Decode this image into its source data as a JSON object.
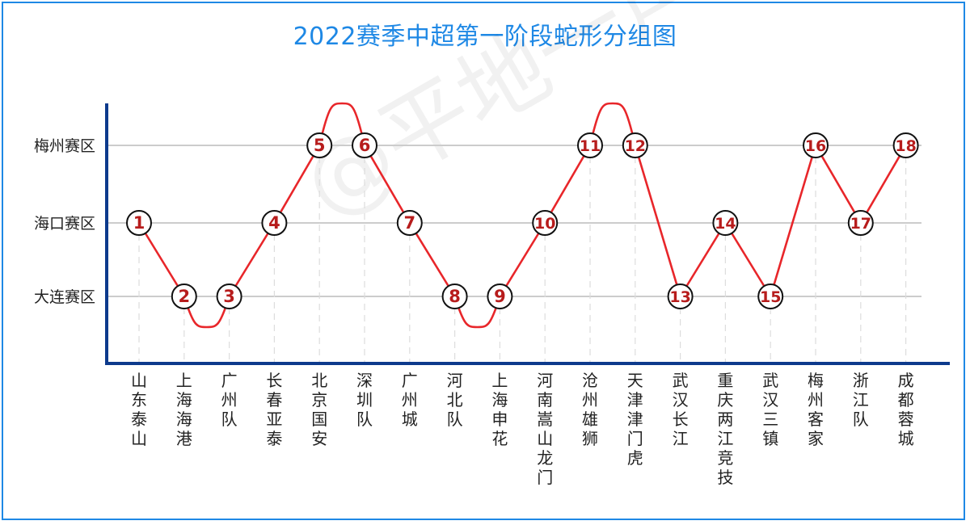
{
  "chart_data": {
    "type": "line",
    "title": "2022赛季中超第一阶段蛇形分组图",
    "y_categories": [
      "大连赛区",
      "海口赛区",
      "梅州赛区"
    ],
    "x": [
      "山东泰山",
      "上海海港",
      "广州队",
      "长春亚泰",
      "北京国安",
      "深圳队",
      "广州城",
      "河北队",
      "上海申花",
      "河南嵩山龙门",
      "沧州雄狮",
      "天津津门虎",
      "武汉长江",
      "重庆两江竞技",
      "武汉三镇",
      "梅州客家",
      "浙江队",
      "成都蓉城"
    ],
    "series": [
      {
        "points": [
          {
            "label": "1",
            "team": "山东泰山",
            "zone": "海口赛区"
          },
          {
            "label": "2",
            "team": "上海海港",
            "zone": "大连赛区"
          },
          {
            "label": "3",
            "team": "广州队",
            "zone": "大连赛区"
          },
          {
            "label": "4",
            "team": "长春亚泰",
            "zone": "海口赛区"
          },
          {
            "label": "5",
            "team": "北京国安",
            "zone": "梅州赛区"
          },
          {
            "label": "6",
            "team": "深圳队",
            "zone": "梅州赛区"
          },
          {
            "label": "7",
            "team": "广州城",
            "zone": "海口赛区"
          },
          {
            "label": "8",
            "team": "河北队",
            "zone": "大连赛区"
          },
          {
            "label": "9",
            "team": "上海申花",
            "zone": "大连赛区"
          },
          {
            "label": "10",
            "team": "河南嵩山龙门",
            "zone": "海口赛区"
          },
          {
            "label": "11",
            "team": "沧州雄狮",
            "zone": "梅州赛区"
          },
          {
            "label": "12",
            "team": "天津津门虎",
            "zone": "梅州赛区"
          },
          {
            "label": "13",
            "team": "武汉长江",
            "zone": "大连赛区"
          },
          {
            "label": "14",
            "team": "重庆两江竞技",
            "zone": "海口赛区"
          },
          {
            "label": "15",
            "team": "武汉三镇",
            "zone": "大连赛区"
          },
          {
            "label": "16",
            "team": "梅州客家",
            "zone": "梅州赛区"
          },
          {
            "label": "17",
            "team": "浙江队",
            "zone": "海口赛区"
          },
          {
            "label": "18",
            "team": "成都蓉城",
            "zone": "梅州赛区"
          }
        ]
      }
    ],
    "grid": true,
    "legend": "none"
  },
  "watermark": "@平地一声雷",
  "colors": {
    "title": "#1e88e5",
    "line": "#e8262a",
    "marker_text": "#b71c1c",
    "axis": "#0d3a8c",
    "grid": "#cccccc",
    "frame": "#1e88e5"
  }
}
